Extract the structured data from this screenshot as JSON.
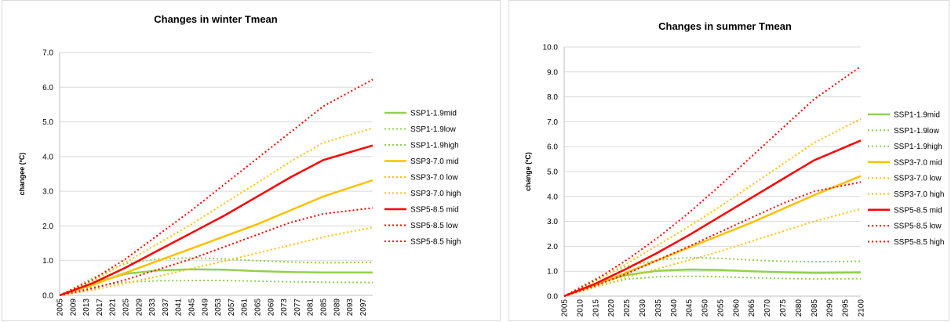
{
  "chart_data": [
    {
      "type": "line",
      "title": "Changes in winter Tmean",
      "xlabel": "",
      "ylabel": "changee (ºC)",
      "ylim": [
        0,
        7
      ],
      "yticks": [
        "0.0",
        "1.0",
        "2.0",
        "3.0",
        "4.0",
        "5.0",
        "6.0",
        "7.0"
      ],
      "x_range": [
        2005,
        2100
      ],
      "x_tick_labels": [
        "2005",
        "2009",
        "2013",
        "2017",
        "2021",
        "2025",
        "2029",
        "2033",
        "2037",
        "2041",
        "2045",
        "2049",
        "2053",
        "2057",
        "2061",
        "2065",
        "2069",
        "2073",
        "2077",
        "2081",
        "2085",
        "2089",
        "2093",
        "2097"
      ],
      "legend_position": "right",
      "x": [
        2005,
        2015,
        2025,
        2035,
        2045,
        2055,
        2065,
        2075,
        2085,
        2100
      ],
      "series": [
        {
          "name": "SSP1-1.9mid",
          "color": "#92d050",
          "style": "solid",
          "values": [
            0,
            0.35,
            0.62,
            0.72,
            0.75,
            0.74,
            0.7,
            0.67,
            0.66,
            0.66
          ]
        },
        {
          "name": "SSP1-1.9low",
          "color": "#92d050",
          "style": "dotted",
          "values": [
            0,
            0.25,
            0.38,
            0.42,
            0.43,
            0.43,
            0.41,
            0.39,
            0.38,
            0.37
          ]
        },
        {
          "name": "SSP1-1.9high",
          "color": "#92d050",
          "style": "dotted",
          "values": [
            0,
            0.5,
            0.92,
            1.05,
            1.08,
            1.05,
            1.0,
            0.96,
            0.94,
            0.95
          ]
        },
        {
          "name": "SSP3-7.0 mid",
          "color": "#ffc000",
          "style": "solid",
          "values": [
            0,
            0.3,
            0.65,
            1.0,
            1.35,
            1.7,
            2.05,
            2.45,
            2.85,
            3.32
          ]
        },
        {
          "name": "SSP3-7.0 low",
          "color": "#ffc000",
          "style": "dotted",
          "values": [
            0,
            0.15,
            0.35,
            0.55,
            0.77,
            0.99,
            1.22,
            1.45,
            1.68,
            1.96
          ]
        },
        {
          "name": "SSP3-7.0 high",
          "color": "#ffc000",
          "style": "dotted",
          "values": [
            0,
            0.4,
            0.95,
            1.5,
            2.05,
            2.65,
            3.25,
            3.85,
            4.4,
            4.82
          ]
        },
        {
          "name": "SSP5-8.5 mid",
          "color": "#ff0000",
          "style": "solid",
          "values": [
            0,
            0.35,
            0.8,
            1.3,
            1.8,
            2.3,
            2.85,
            3.4,
            3.9,
            4.32
          ]
        },
        {
          "name": "SSP5-8.5 low",
          "color": "#ff0000",
          "style": "dotted",
          "values": [
            0,
            0.2,
            0.45,
            0.75,
            1.05,
            1.4,
            1.75,
            2.1,
            2.35,
            2.52
          ]
        },
        {
          "name": "SSP5-8.5 high",
          "color": "#ff0000",
          "style": "dotted",
          "values": [
            0,
            0.45,
            1.05,
            1.75,
            2.45,
            3.2,
            3.95,
            4.7,
            5.45,
            6.22
          ]
        }
      ]
    },
    {
      "type": "line",
      "title": "Changes in summer Tmean",
      "xlabel": "",
      "ylabel": "change (ºC)",
      "ylim": [
        0,
        10
      ],
      "yticks": [
        "0.0",
        "1.0",
        "2.0",
        "3.0",
        "4.0",
        "5.0",
        "6.0",
        "7.0",
        "8.0",
        "9.0",
        "10.0"
      ],
      "x_range": [
        2005,
        2100
      ],
      "x_tick_labels": [
        "2005",
        "2010",
        "2015",
        "2020",
        "2025",
        "2030",
        "2035",
        "2040",
        "2045",
        "2050",
        "2055",
        "2060",
        "2065",
        "2070",
        "2075",
        "2080",
        "2085",
        "2090",
        "2095",
        "2100"
      ],
      "legend_position": "right",
      "x": [
        2005,
        2015,
        2025,
        2035,
        2045,
        2055,
        2065,
        2075,
        2085,
        2100
      ],
      "series": [
        {
          "name": "SSP1-1.9mid",
          "color": "#92d050",
          "style": "solid",
          "values": [
            0,
            0.5,
            0.85,
            1.02,
            1.07,
            1.05,
            1.0,
            0.96,
            0.93,
            0.95
          ]
        },
        {
          "name": "SSP1-1.9low",
          "color": "#92d050",
          "style": "dotted",
          "values": [
            0,
            0.4,
            0.68,
            0.78,
            0.8,
            0.78,
            0.74,
            0.71,
            0.69,
            0.7
          ]
        },
        {
          "name": "SSP1-1.9high",
          "color": "#92d050",
          "style": "dotted",
          "values": [
            0,
            0.7,
            1.2,
            1.45,
            1.55,
            1.52,
            1.45,
            1.4,
            1.38,
            1.4
          ]
        },
        {
          "name": "SSP3-7.0 mid",
          "color": "#ffc000",
          "style": "solid",
          "values": [
            0,
            0.45,
            0.95,
            1.45,
            1.95,
            2.45,
            2.95,
            3.5,
            4.05,
            4.82
          ]
        },
        {
          "name": "SSP3-7.0 low",
          "color": "#ffc000",
          "style": "dotted",
          "values": [
            0,
            0.35,
            0.75,
            1.1,
            1.45,
            1.8,
            2.2,
            2.6,
            3.0,
            3.5
          ]
        },
        {
          "name": "SSP3-7.0 high",
          "color": "#ffc000",
          "style": "dotted",
          "values": [
            0,
            0.6,
            1.3,
            2.05,
            2.8,
            3.6,
            4.45,
            5.3,
            6.15,
            7.12
          ]
        },
        {
          "name": "SSP5-8.5 mid",
          "color": "#ff0000",
          "style": "solid",
          "values": [
            0,
            0.5,
            1.1,
            1.75,
            2.45,
            3.2,
            3.95,
            4.7,
            5.45,
            6.25
          ]
        },
        {
          "name": "SSP5-8.5 low",
          "color": "#ff0000",
          "style": "dotted",
          "values": [
            0,
            0.42,
            0.9,
            1.45,
            2.0,
            2.58,
            3.15,
            3.72,
            4.2,
            4.58
          ]
        },
        {
          "name": "SSP5-8.5 high",
          "color": "#ff0000",
          "style": "dotted",
          "values": [
            0,
            0.65,
            1.45,
            2.35,
            3.35,
            4.45,
            5.6,
            6.75,
            7.9,
            9.22
          ]
        }
      ]
    }
  ]
}
